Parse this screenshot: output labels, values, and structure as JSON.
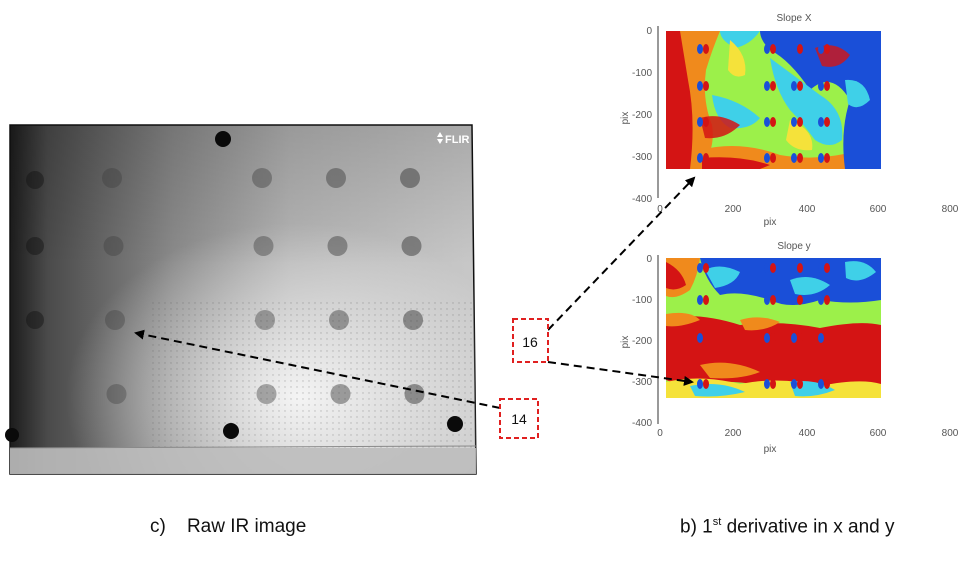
{
  "ir_image": {
    "logo_text": "FLIR",
    "caption_prefix": "c)",
    "caption": "Raw IR image"
  },
  "slope_plots": {
    "slope_x": {
      "title": "Slope X",
      "xlabel": "pix",
      "ylabel": "pix",
      "x_ticks": [
        "0",
        "200",
        "400",
        "600",
        "800"
      ],
      "y_ticks": [
        "0",
        "-100",
        "-200",
        "-300",
        "-400"
      ]
    },
    "slope_y": {
      "title": "Slope y",
      "xlabel": "pix",
      "ylabel": "pix",
      "x_ticks": [
        "0",
        "200",
        "400",
        "600",
        "800"
      ],
      "y_ticks": [
        "0",
        "-100",
        "-200",
        "-300",
        "-400"
      ]
    },
    "caption_prefix": "b) 1",
    "caption_sup": "st",
    "caption_suffix": " derivative in x and y"
  },
  "callouts": {
    "label_16": "16",
    "label_14": "14"
  },
  "colors": {
    "callout_border": "#e02020",
    "jet_blue": "#1a4fd8",
    "jet_cyan": "#3fd0e8",
    "jet_green": "#9cf04a",
    "jet_yellow": "#f5e23a",
    "jet_orange": "#f08a1c",
    "jet_red": "#d41414"
  }
}
